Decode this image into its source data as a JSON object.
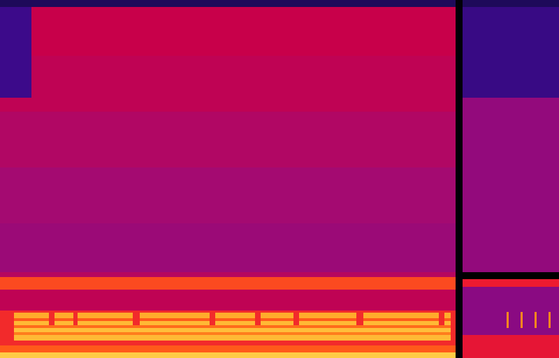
{
  "chart_data": {
    "type": "spectrogram",
    "tick_labels": false,
    "grid": false,
    "xlim": [
      0,
      100
    ],
    "ylim": [
      0,
      100
    ],
    "zlim": [
      0,
      1
    ],
    "cells": [
      [
        0,
        81.5,
        98.1,
        100,
        0.2
      ],
      [
        0,
        81.5,
        84.4,
        98.1,
        0.62
      ],
      [
        0,
        81.5,
        68.8,
        84.4,
        0.6
      ],
      [
        0,
        81.5,
        53.2,
        68.8,
        0.57
      ],
      [
        0,
        81.5,
        37.6,
        53.2,
        0.54
      ],
      [
        0,
        81.5,
        24.0,
        37.6,
        0.52
      ],
      [
        0,
        81.5,
        22.6,
        24.0,
        0.58
      ],
      [
        0,
        81.5,
        19.1,
        22.6,
        0.78
      ],
      [
        0,
        81.5,
        13.3,
        19.1,
        0.6
      ],
      [
        0,
        81.5,
        3.5,
        13.3,
        0.74
      ],
      [
        0,
        5.6,
        72.7,
        98.1,
        0.35
      ],
      [
        2.5,
        80.6,
        11.1,
        12.7,
        0.9
      ],
      [
        2.5,
        80.6,
        10.3,
        11.1,
        0.8
      ],
      [
        2.5,
        80.6,
        9.2,
        10.3,
        0.92
      ],
      [
        2.5,
        80.6,
        8.4,
        9.2,
        0.82
      ],
      [
        2.5,
        80.6,
        7.2,
        8.4,
        0.93
      ],
      [
        2.5,
        80.6,
        6.4,
        7.2,
        0.84
      ],
      [
        2.5,
        80.6,
        4.9,
        6.4,
        0.92
      ],
      [
        0,
        81.5,
        1.6,
        3.5,
        0.8
      ],
      [
        0,
        81.5,
        0,
        1.6,
        0.95
      ],
      [
        8.75,
        9.75,
        9.2,
        12.7,
        0.74
      ],
      [
        13.1,
        13.9,
        9.2,
        12.7,
        0.74
      ],
      [
        23.75,
        25,
        9.2,
        12.7,
        0.74
      ],
      [
        37.5,
        38.5,
        9.2,
        12.7,
        0.74
      ],
      [
        45.6,
        46.6,
        9.2,
        12.7,
        0.74
      ],
      [
        52.5,
        53.5,
        9.2,
        12.7,
        0.74
      ],
      [
        63.75,
        65,
        9.2,
        12.7,
        0.74
      ],
      [
        78.5,
        79.5,
        9.2,
        12.7,
        0.74
      ],
      [
        81.5,
        82.75,
        0,
        100,
        0
      ],
      [
        82.75,
        100,
        98.1,
        100,
        0.2
      ],
      [
        82.75,
        100,
        72.7,
        98.1,
        0.33
      ],
      [
        82.75,
        100,
        24.0,
        72.7,
        0.5
      ],
      [
        82.75,
        100,
        19.9,
        22.0,
        0.72
      ],
      [
        82.75,
        100,
        6.4,
        19.9,
        0.48
      ],
      [
        82.75,
        100,
        0,
        6.4,
        0.7
      ],
      [
        90.6,
        91.0,
        8.4,
        12.9,
        0.85
      ],
      [
        93.1,
        93.5,
        8.4,
        12.9,
        0.85
      ],
      [
        95.6,
        96.0,
        8.4,
        12.9,
        0.85
      ],
      [
        98.1,
        98.5,
        8.4,
        12.9,
        0.85
      ]
    ]
  }
}
